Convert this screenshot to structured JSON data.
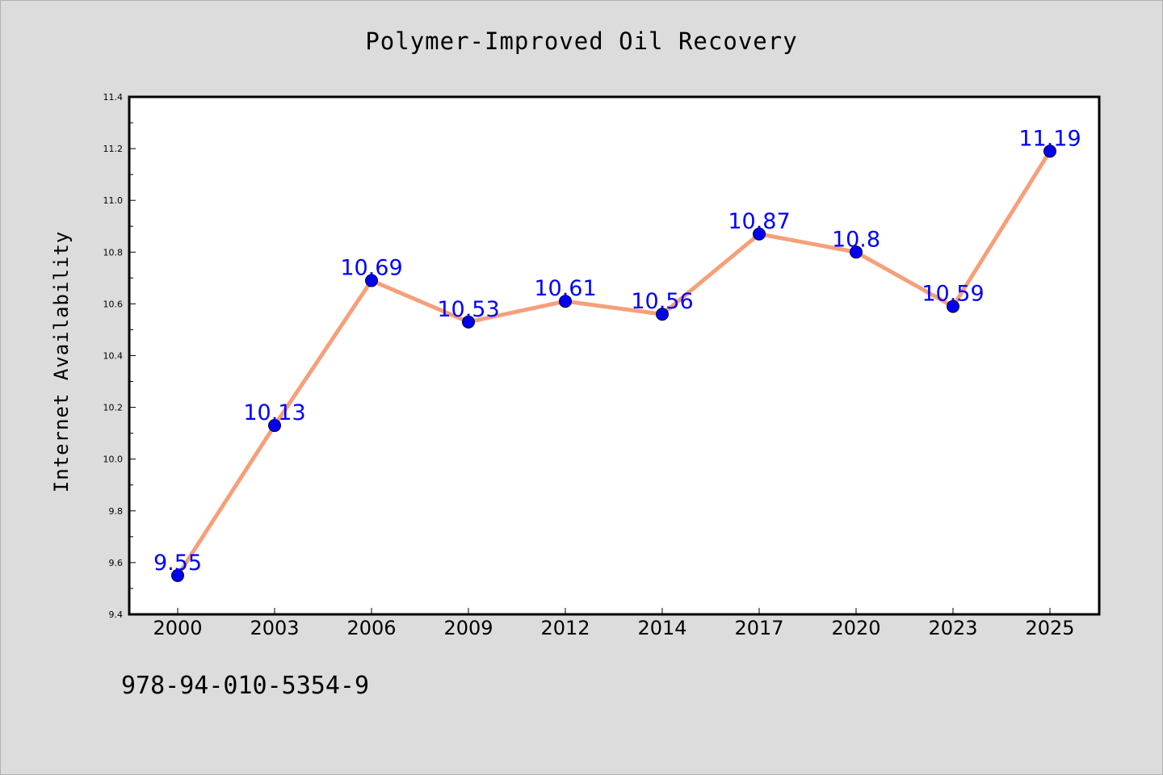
{
  "colors": {
    "background": "#dcdcdc",
    "plot_background": "#ffffff",
    "line": "#f5a07a",
    "marker": "#0000ee",
    "data_label": "#0000ff",
    "axis": "#000000"
  },
  "footer": {
    "code": "978-94-010-5354-9"
  },
  "chart_data": {
    "type": "line",
    "title": "Polymer-Improved Oil Recovery",
    "xlabel": "",
    "ylabel": "Internet Availability",
    "categories": [
      "2000",
      "2003",
      "2006",
      "2009",
      "2012",
      "2014",
      "2017",
      "2020",
      "2023",
      "2025"
    ],
    "series": [
      {
        "values": [
          9.55,
          10.13,
          10.69,
          10.53,
          10.61,
          10.56,
          10.87,
          10.8,
          10.59,
          11.19
        ],
        "labels": [
          "9.55",
          "10.13",
          "10.69",
          "10.53",
          "10.61",
          "10.56",
          "10.87",
          "10.8",
          "10.59",
          "11.19"
        ]
      }
    ],
    "ylim": [
      9.4,
      11.4
    ],
    "yticks": [
      "9.4",
      "9.6",
      "9.8",
      "10.0",
      "10.2",
      "10.4",
      "10.6",
      "10.8",
      "11.0",
      "11.2",
      "11.4"
    ],
    "grid": false,
    "legend": "none"
  }
}
